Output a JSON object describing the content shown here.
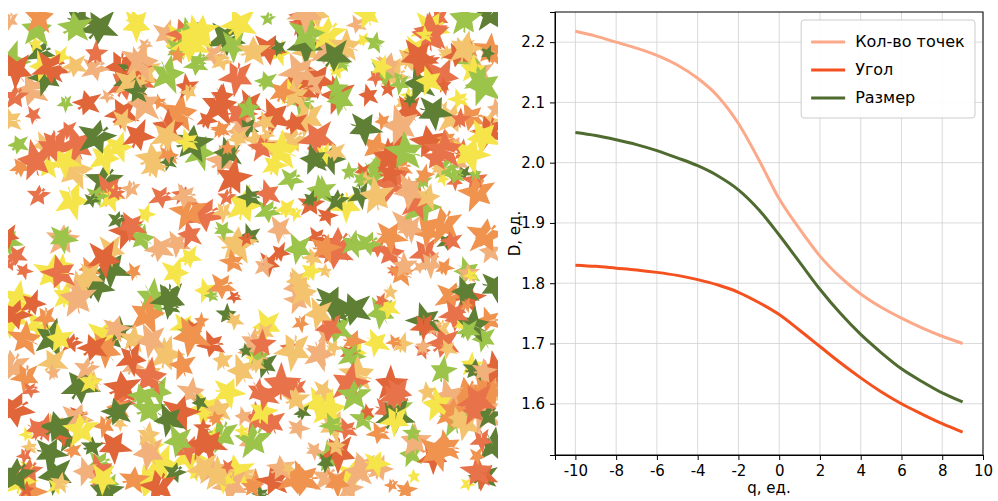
{
  "chart_data": {
    "type": "line",
    "xlabel": "q, ед.",
    "ylabel": "D, ед.",
    "x": [
      -10,
      -9,
      -8,
      -7,
      -6,
      -5,
      -4,
      -3,
      -2,
      -1,
      0,
      1,
      2,
      3,
      4,
      5,
      6,
      7,
      8,
      9
    ],
    "series": [
      {
        "name": "Кол-во точек",
        "color": "#fca98a",
        "values": [
          2.218,
          2.21,
          2.2,
          2.19,
          2.178,
          2.162,
          2.14,
          2.11,
          2.065,
          2.005,
          1.94,
          1.89,
          1.845,
          1.81,
          1.782,
          1.76,
          1.742,
          1.726,
          1.712,
          1.7
        ]
      },
      {
        "name": "Угол",
        "color": "#f4511e",
        "values": [
          1.83,
          1.828,
          1.825,
          1.822,
          1.818,
          1.813,
          1.806,
          1.797,
          1.785,
          1.768,
          1.748,
          1.722,
          1.695,
          1.668,
          1.643,
          1.62,
          1.6,
          1.583,
          1.567,
          1.553
        ]
      },
      {
        "name": "Размер",
        "color": "#4f6b2f",
        "values": [
          2.05,
          2.045,
          2.038,
          2.03,
          2.02,
          2.008,
          1.995,
          1.978,
          1.955,
          1.922,
          1.88,
          1.835,
          1.79,
          1.75,
          1.715,
          1.685,
          1.658,
          1.637,
          1.618,
          1.603
        ]
      }
    ],
    "xlim": [
      -11,
      10
    ],
    "xticks": [
      -10,
      -8,
      -6,
      -4,
      -2,
      0,
      2,
      4,
      6,
      8,
      10
    ],
    "ylim": [
      1.515,
      2.25
    ],
    "yticks": [
      1.6,
      1.7,
      1.8,
      1.9,
      {
        "value": 2,
        "label": "2.0"
      },
      2.1,
      2.2
    ],
    "grid": true,
    "legend": "upper right"
  }
}
